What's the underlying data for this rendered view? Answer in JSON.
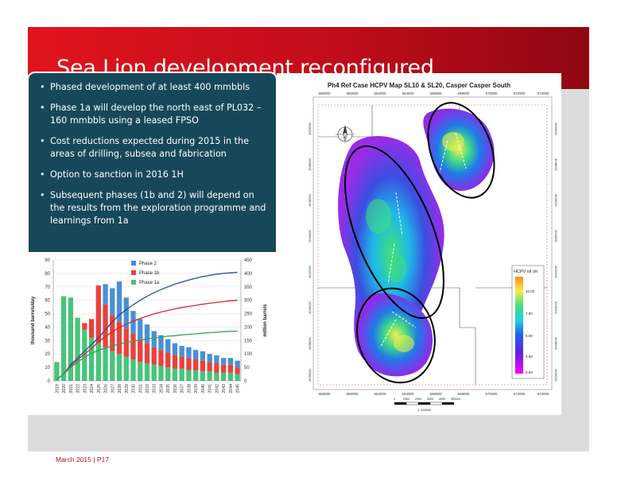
{
  "slide": {
    "title": "Sea Lion development reconfigured",
    "footer": "March 2015 | P17"
  },
  "bullets": [
    "Phased development of at least 400 mmbbls",
    "Phase 1a will develop the north east of PL032 – 160 mmbbls using a leased FPSO",
    "Cost reductions expected during 2015 in the areas of drilling, subsea and fabrication",
    "Option to sanction in 2016 1H",
    "Subsequent phases (1b and 2) will depend on the results from the exploration programme and learnings from 1a"
  ],
  "colors": {
    "phase_2": "#4a8fd6",
    "phase_1b": "#e8413c",
    "phase_1a": "#47c47a",
    "title_bar": "#d3111c",
    "panel": "#17485a"
  },
  "chart_data": {
    "type": "bar",
    "stacked": true,
    "categories": [
      "2019",
      "2020",
      "2021",
      "2022",
      "2023",
      "2024",
      "2025",
      "2026",
      "2027",
      "2028",
      "2029",
      "2030",
      "2031",
      "2032",
      "2033",
      "2034",
      "2035",
      "2036",
      "2037",
      "2038",
      "2039",
      "2040",
      "2041",
      "2042",
      "2043",
      "2044",
      "2045"
    ],
    "series": [
      {
        "name": "Phase 1a",
        "color": "#47c47a",
        "values": [
          14,
          63,
          62,
          47,
          38,
          32,
          28,
          25,
          22,
          20,
          18,
          16,
          14,
          13,
          12,
          11,
          10,
          9,
          9,
          8,
          8,
          7,
          7,
          6,
          6,
          6,
          5
        ]
      },
      {
        "name": "Phase 1b",
        "color": "#e8413c",
        "values": [
          0,
          0,
          0,
          0,
          5,
          14,
          43,
          32,
          27,
          24,
          21,
          19,
          17,
          15,
          13,
          12,
          11,
          10,
          9,
          9,
          8,
          8,
          7,
          7,
          6,
          6,
          5
        ]
      },
      {
        "name": "Phase 2",
        "color": "#4a8fd6",
        "values": [
          0,
          0,
          0,
          0,
          0,
          0,
          0,
          15,
          20,
          30,
          23,
          17,
          15,
          14,
          12,
          11,
          10,
          9,
          8,
          8,
          7,
          7,
          6,
          6,
          5,
          5,
          5
        ]
      }
    ],
    "cumulative_lines": [
      {
        "name": "Phase 2 cumulative",
        "color": "#1f4fa0",
        "values": [
          5,
          25,
          60,
          85,
          110,
          135,
          160,
          190,
          220,
          245,
          265,
          283,
          300,
          315,
          328,
          340,
          350,
          360,
          368,
          375,
          382,
          388,
          393,
          397,
          400,
          402,
          404
        ]
      },
      {
        "name": "Phase 1b cumulative",
        "color": "#d62a22",
        "values": [
          5,
          25,
          55,
          78,
          100,
          120,
          145,
          165,
          183,
          198,
          211,
          222,
          232,
          241,
          249,
          256,
          262,
          268,
          273,
          277,
          281,
          285,
          289,
          292,
          295,
          298,
          300
        ]
      },
      {
        "name": "Phase 1a cumulative",
        "color": "#2aa660",
        "values": [
          5,
          25,
          50,
          70,
          88,
          102,
          113,
          122,
          130,
          137,
          143,
          148,
          152,
          156,
          160,
          163,
          166,
          168,
          171,
          173,
          175,
          177,
          179,
          181,
          183,
          184,
          185
        ]
      }
    ],
    "legend": [
      "Phase 2",
      "Phase 1b",
      "Phase 1a"
    ],
    "ylabel": "thousand barrels/day",
    "y2label": "million barrels",
    "ylim": [
      0,
      90
    ],
    "y2lim": [
      0,
      450
    ],
    "yticks": [
      0,
      10,
      20,
      30,
      40,
      50,
      60,
      70,
      80,
      90
    ],
    "y2ticks": [
      0,
      50,
      100,
      150,
      200,
      250,
      300,
      350,
      400,
      450
    ]
  },
  "map": {
    "title": "Ph4 Ref Case HCPV Map SL10 & SL20, Casper Casper South",
    "x_ticks": [
      "558000",
      "560000",
      "562000",
      "564000",
      "566000",
      "568000",
      "570000",
      "572000",
      "574000"
    ],
    "y_ticks": [
      "4550000",
      "4548000",
      "4546000",
      "4544000",
      "4542000",
      "4540000",
      "4538000",
      "4536000"
    ],
    "legend_title": "HCPV oil (m",
    "legend_values": [
      "10.00",
      "7.50",
      "5.00",
      "2.50",
      "0.00"
    ],
    "scale_labels": [
      "0",
      "1000",
      "2000",
      "3000",
      "4000",
      "5000m"
    ],
    "scale_ratio": "1:100000"
  }
}
